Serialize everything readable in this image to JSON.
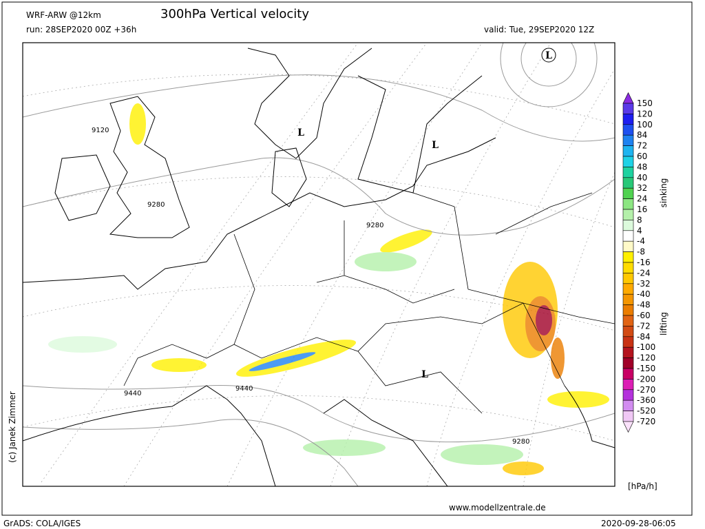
{
  "header": {
    "model": "WRF-ARW @12km",
    "title": "300hPa Vertical velocity",
    "run": "run: 28SEP2020 00Z +36h",
    "valid": "valid: Tue, 29SEP2020 12Z"
  },
  "map": {
    "contour_labels": [
      {
        "label": 9120
      },
      {
        "label": 9280
      },
      {
        "label": 9280
      },
      {
        "label": 9440
      },
      {
        "label": 9440
      },
      {
        "label": 9280
      }
    ],
    "pressure_centers": [
      "L",
      "L",
      "L",
      "L"
    ]
  },
  "legend": {
    "ticks": [
      150,
      120,
      100,
      84,
      72,
      60,
      48,
      40,
      32,
      24,
      16,
      8,
      4,
      -4,
      -8,
      -16,
      -24,
      -32,
      -40,
      -48,
      -60,
      -72,
      -84,
      -100,
      -120,
      -150,
      -200,
      -270,
      -360,
      -520,
      -720
    ],
    "colors": [
      "#8a2be2",
      "#5a3ae8",
      "#1e1ef0",
      "#1e50f0",
      "#1e82f0",
      "#1eb4f0",
      "#1ed2e6",
      "#1ed2a0",
      "#28c878",
      "#50d250",
      "#8ce682",
      "#b4f0aa",
      "#dcfadc",
      "#ffffff",
      "#fffac8",
      "#fff000",
      "#ffdc00",
      "#ffc800",
      "#ffaa00",
      "#f59600",
      "#eb7d00",
      "#e16414",
      "#d24b14",
      "#c83214",
      "#b4141e",
      "#a00028",
      "#c80064",
      "#dc1eb4",
      "#b432dc",
      "#d28cf0",
      "#f0c8f5",
      "#fae1fa"
    ],
    "upper_label": "sinking",
    "lower_label": "lifting",
    "unit": "[hPa/h]"
  },
  "footer": {
    "credit": "(c) Janek Zimmer",
    "website": "www.modellzentrale.de",
    "software": "GrADS: COLA/IGES",
    "timestamp": "2020-09-28-06:05"
  }
}
